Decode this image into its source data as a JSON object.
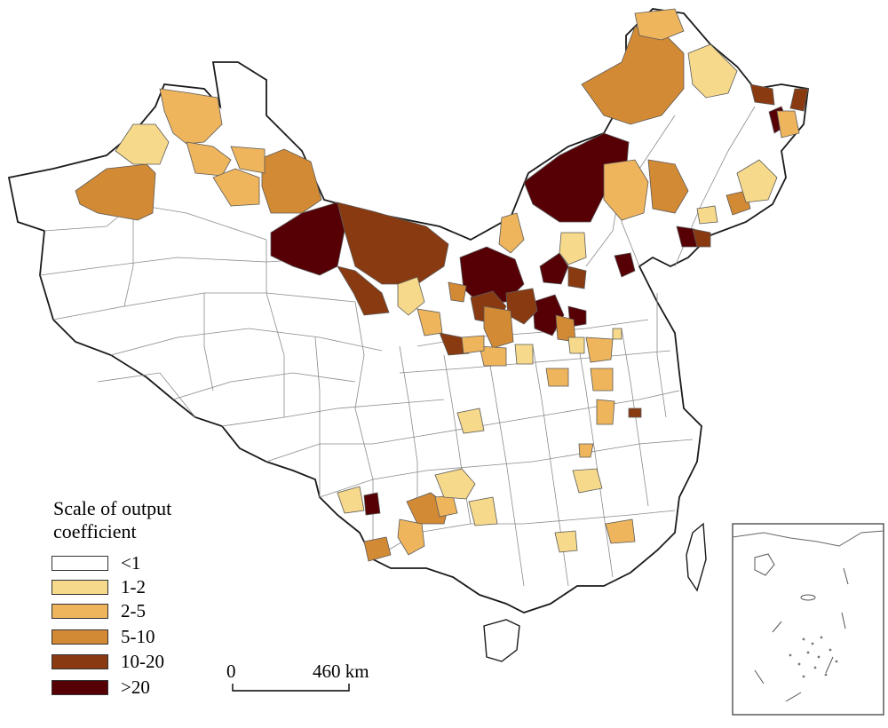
{
  "legend": {
    "title_line1": "Scale of output",
    "title_line2": "coefficient",
    "classes": [
      {
        "label": "<1",
        "color": "#ffffff"
      },
      {
        "label": "1-2",
        "color": "#f6d98a"
      },
      {
        "label": "2-5",
        "color": "#eeb55d"
      },
      {
        "label": "5-10",
        "color": "#d38a34"
      },
      {
        "label": "10-20",
        "color": "#8a3a10"
      },
      {
        "label": ">20",
        "color": "#560005"
      }
    ]
  },
  "scale_bar": {
    "start_label": "0",
    "end_label": "460 km"
  },
  "colors": {
    "boundary": "#7d7d7d",
    "outline": "#1a1a1a"
  }
}
